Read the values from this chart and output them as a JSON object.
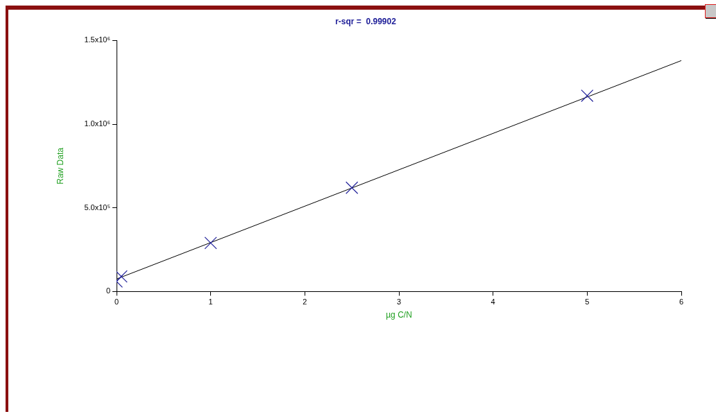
{
  "chart_data": {
    "type": "scatter",
    "title": "r-sqr =  0.99902",
    "xlabel": "µg C/N",
    "ylabel": "Raw Data",
    "marker": "cross",
    "grid": false,
    "legend": false,
    "xlim": [
      0,
      6
    ],
    "xticks": [
      0,
      1,
      2,
      3,
      4,
      5,
      6
    ],
    "ylim": [
      0,
      1500000
    ],
    "yticks": [
      0,
      {
        "value": 500000,
        "label": "5.0x10⁵"
      },
      {
        "value": 1000000,
        "label": "1.0x10⁶"
      },
      {
        "value": 1500000,
        "label": "1.5x10⁶"
      }
    ],
    "series": [
      {
        "color": "#22229a",
        "x": [
          0,
          0.05,
          1,
          2.5,
          5
        ],
        "values": [
          60000,
          90000,
          290000,
          620000,
          1170000
        ]
      },
      {
        "type": "line",
        "color": "#000000",
        "marker": "none",
        "x": [
          0,
          6
        ],
        "values": [
          75000,
          1380000
        ]
      }
    ]
  }
}
